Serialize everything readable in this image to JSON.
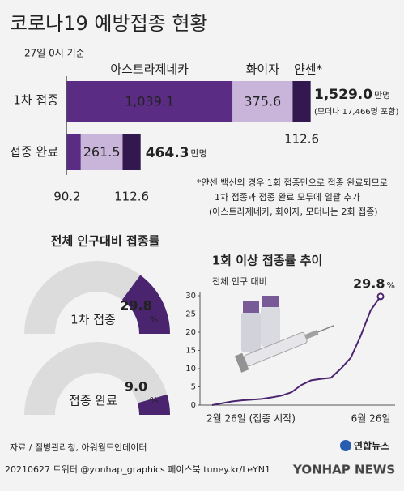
{
  "title": "코로나19 예방접종 현황",
  "subtitle": "27일 0시 기준",
  "footnote": [
    "*얀센 백신의 경우 1회 접종만으로 접종 완료되므로",
    "1차 접종과 접종 완료 모두에 일괄 추가",
    "(아스트라제네카, 화이자, 모더나는 2회 접종)"
  ],
  "source": "자료 / 질병관리청, 아워월드인데이터",
  "logo": "연합뉴스",
  "footer": "20210627 트위터 @yonhap_graphics 페이스북 tuney.kr/LeYN1",
  "watermark": "YONHAP NEWS",
  "chart_data": [
    {
      "type": "stacked-bar",
      "categories": [
        "1차 접종",
        "접종 완료"
      ],
      "series": [
        {
          "name": "아스트라제네카",
          "color": "#5b2c83",
          "values": [
            1039.1,
            90.2
          ],
          "value_labels": [
            "1,039.1",
            "90.2"
          ]
        },
        {
          "name": "화이자",
          "color": "#c9b5da",
          "values": [
            375.6,
            261.5
          ],
          "value_labels": [
            "375.6",
            "261.5"
          ]
        },
        {
          "name": "얀센*",
          "color": "#32184f",
          "values": [
            112.6,
            112.6
          ],
          "value_labels": [
            "112.6",
            "112.6"
          ]
        }
      ],
      "totals": [
        1529.0,
        464.3
      ],
      "total_labels": [
        "1,529.0",
        "464.3"
      ],
      "unit": "만명",
      "annotation": "(모더나 17,466명 포함)"
    },
    {
      "type": "gauge",
      "title": "전체 인구대비 접종률",
      "categories": [
        "1차 접종",
        "접종 완료"
      ],
      "values": [
        29.8,
        9.0
      ],
      "value_labels": [
        "29.8",
        "9.0"
      ],
      "unit": "%",
      "ylim": [
        0,
        100
      ],
      "color": "#4b2470",
      "track_color": "#dcdcdc"
    },
    {
      "type": "line",
      "title": "1회 이상 접종률 추이",
      "ylabel": "전체 인구 대비",
      "categories": [
        "2월 26일 (접종 시작)",
        null,
        null,
        null,
        null,
        null,
        null,
        null,
        null,
        null,
        null,
        null,
        null,
        null,
        null,
        null,
        null,
        "6월 26일"
      ],
      "series": [
        {
          "color": "#4b2470",
          "values": [
            0,
            0.5,
            1.0,
            1.3,
            1.5,
            1.7,
            2.1,
            2.6,
            3.5,
            5.5,
            6.8,
            7.2,
            7.5,
            10,
            13,
            19,
            26,
            29.8
          ]
        }
      ],
      "unit": "%",
      "ylim": [
        0,
        30
      ],
      "yticks": [
        0,
        5,
        10,
        15,
        20,
        25,
        30
      ]
    }
  ]
}
